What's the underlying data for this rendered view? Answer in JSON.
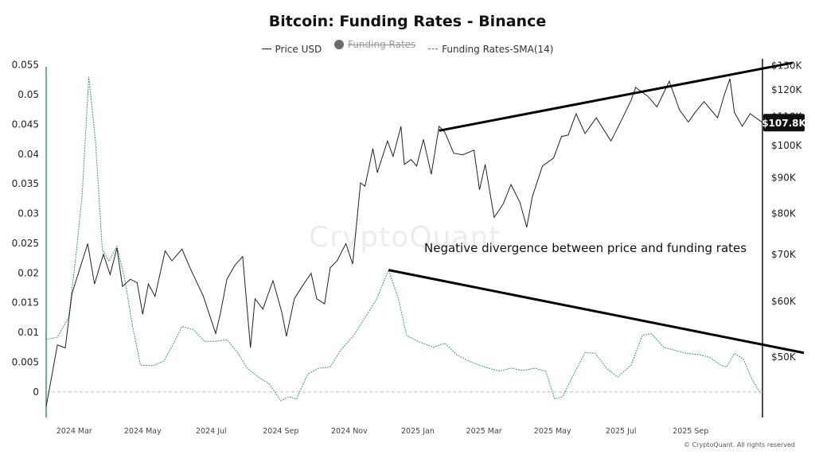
{
  "chart_data": {
    "type": "line",
    "title": "Bitcoin: Funding Rates - Binance",
    "legend": [
      {
        "name": "Price USD",
        "style": "solid",
        "color": "#222222",
        "hidden": false
      },
      {
        "name": "Funding Rates",
        "style": "dot",
        "color": "#6b6b6b",
        "hidden": true
      },
      {
        "name": "Funding Rates-SMA(14)",
        "style": "dashed",
        "color": "#3a9a6a",
        "hidden": false
      }
    ],
    "legend_position": "top-center",
    "x_ticks": [
      "2024 Mar",
      "2024 May",
      "2024 Jul",
      "2024 Sep",
      "2024 Nov",
      "2025 Jan",
      "2025 Mar",
      "2025 May",
      "2025 Jul",
      "2025 Sep"
    ],
    "x_range": [
      "2024-02-05",
      "2025-11-04"
    ],
    "left_axis": {
      "label": "",
      "ticks": [
        "0.055",
        "0.05",
        "0.045",
        "0.04",
        "0.035",
        "0.03",
        "0.025",
        "0.02",
        "0.015",
        "0.01",
        "0.005",
        "0"
      ],
      "range": [
        -0.0043,
        0.0555
      ]
    },
    "right_axis": {
      "label": "",
      "scale": "log",
      "ticks": [
        "$130K",
        "$120K",
        "$110K",
        "$100K",
        "$90K",
        "$80K",
        "$70K",
        "$60K",
        "$50K"
      ],
      "tick_values": [
        130000,
        120000,
        110000,
        100000,
        90000,
        80000,
        70000,
        60000,
        50000
      ],
      "range": [
        41000,
        131500
      ]
    },
    "current_price_label": "$107.8K",
    "series": [
      {
        "name": "Price USD",
        "axis": "right",
        "points": [
          [
            "2024-02-05",
            42500
          ],
          [
            "2024-02-10",
            47000
          ],
          [
            "2024-02-15",
            52000
          ],
          [
            "2024-02-22",
            51500
          ],
          [
            "2024-02-28",
            61500
          ],
          [
            "2024-03-05",
            66000
          ],
          [
            "2024-03-13",
            72500
          ],
          [
            "2024-03-19",
            63500
          ],
          [
            "2024-03-27",
            70000
          ],
          [
            "2024-04-02",
            65500
          ],
          [
            "2024-04-08",
            71500
          ],
          [
            "2024-04-13",
            63000
          ],
          [
            "2024-04-20",
            64500
          ],
          [
            "2024-04-26",
            63800
          ],
          [
            "2024-05-01",
            57500
          ],
          [
            "2024-05-06",
            63500
          ],
          [
            "2024-05-12",
            61000
          ],
          [
            "2024-05-21",
            70800
          ],
          [
            "2024-05-27",
            68500
          ],
          [
            "2024-06-05",
            71200
          ],
          [
            "2024-06-12",
            67000
          ],
          [
            "2024-06-24",
            61000
          ],
          [
            "2024-07-05",
            54000
          ],
          [
            "2024-07-09",
            57500
          ],
          [
            "2024-07-15",
            64500
          ],
          [
            "2024-07-22",
            67500
          ],
          [
            "2024-07-29",
            69500
          ],
          [
            "2024-08-05",
            51500
          ],
          [
            "2024-08-09",
            60500
          ],
          [
            "2024-08-16",
            58500
          ],
          [
            "2024-08-25",
            64200
          ],
          [
            "2024-09-02",
            57800
          ],
          [
            "2024-09-06",
            53500
          ],
          [
            "2024-09-13",
            60500
          ],
          [
            "2024-09-20",
            63000
          ],
          [
            "2024-09-28",
            65800
          ],
          [
            "2024-10-03",
            60500
          ],
          [
            "2024-10-10",
            59500
          ],
          [
            "2024-10-15",
            67000
          ],
          [
            "2024-10-21",
            68500
          ],
          [
            "2024-10-29",
            72500
          ],
          [
            "2024-11-04",
            67800
          ],
          [
            "2024-11-11",
            88500
          ],
          [
            "2024-11-15",
            87500
          ],
          [
            "2024-11-22",
            99000
          ],
          [
            "2024-11-26",
            91500
          ],
          [
            "2024-12-05",
            101500
          ],
          [
            "2024-12-10",
            96500
          ],
          [
            "2024-12-17",
            106500
          ],
          [
            "2024-12-20",
            94000
          ],
          [
            "2024-12-26",
            95500
          ],
          [
            "2024-12-31",
            93500
          ],
          [
            "2025-01-06",
            102000
          ],
          [
            "2025-01-13",
            91000
          ],
          [
            "2025-01-20",
            106500
          ],
          [
            "2025-01-25",
            104500
          ],
          [
            "2025-02-02",
            97500
          ],
          [
            "2025-02-10",
            97000
          ],
          [
            "2025-02-20",
            98500
          ],
          [
            "2025-02-25",
            86500
          ],
          [
            "2025-03-02",
            94000
          ],
          [
            "2025-03-10",
            79000
          ],
          [
            "2025-03-18",
            82500
          ],
          [
            "2025-03-25",
            88000
          ],
          [
            "2025-04-02",
            83000
          ],
          [
            "2025-04-08",
            76500
          ],
          [
            "2025-04-13",
            84500
          ],
          [
            "2025-04-22",
            93500
          ],
          [
            "2025-05-02",
            96000
          ],
          [
            "2025-05-09",
            103000
          ],
          [
            "2025-05-15",
            103500
          ],
          [
            "2025-05-22",
            111000
          ],
          [
            "2025-05-30",
            104000
          ],
          [
            "2025-06-09",
            109500
          ],
          [
            "2025-06-17",
            104500
          ],
          [
            "2025-06-22",
            101500
          ],
          [
            "2025-06-30",
            107500
          ],
          [
            "2025-07-10",
            116000
          ],
          [
            "2025-07-14",
            121000
          ],
          [
            "2025-07-25",
            117500
          ],
          [
            "2025-08-02",
            113500
          ],
          [
            "2025-08-13",
            123500
          ],
          [
            "2025-08-22",
            112500
          ],
          [
            "2025-08-30",
            108000
          ],
          [
            "2025-09-05",
            111500
          ],
          [
            "2025-09-13",
            115500
          ],
          [
            "2025-09-25",
            109500
          ],
          [
            "2025-10-01",
            118000
          ],
          [
            "2025-10-06",
            124500
          ],
          [
            "2025-10-10",
            111500
          ],
          [
            "2025-10-17",
            106500
          ],
          [
            "2025-10-24",
            111000
          ],
          [
            "2025-11-04",
            107800
          ]
        ]
      },
      {
        "name": "Funding Rates-SMA(14)",
        "axis": "left",
        "points": [
          [
            "2024-02-05",
            0.0088
          ],
          [
            "2024-02-15",
            0.0092
          ],
          [
            "2024-02-25",
            0.0125
          ],
          [
            "2024-03-02",
            0.022
          ],
          [
            "2024-03-08",
            0.033
          ],
          [
            "2024-03-14",
            0.053
          ],
          [
            "2024-03-20",
            0.042
          ],
          [
            "2024-03-26",
            0.024
          ],
          [
            "2024-04-01",
            0.022
          ],
          [
            "2024-04-08",
            0.0245
          ],
          [
            "2024-04-15",
            0.019
          ],
          [
            "2024-04-22",
            0.011
          ],
          [
            "2024-04-29",
            0.0045
          ],
          [
            "2024-05-10",
            0.0044
          ],
          [
            "2024-05-20",
            0.0052
          ],
          [
            "2024-05-28",
            0.008
          ],
          [
            "2024-06-05",
            0.011
          ],
          [
            "2024-06-15",
            0.0105
          ],
          [
            "2024-06-25",
            0.0085
          ],
          [
            "2024-07-05",
            0.0085
          ],
          [
            "2024-07-15",
            0.0088
          ],
          [
            "2024-07-25",
            0.0065
          ],
          [
            "2024-08-02",
            0.004
          ],
          [
            "2024-08-12",
            0.0025
          ],
          [
            "2024-08-22",
            0.0013
          ],
          [
            "2024-09-01",
            -0.0015
          ],
          [
            "2024-09-08",
            -0.0008
          ],
          [
            "2024-09-15",
            -0.0012
          ],
          [
            "2024-09-25",
            0.003
          ],
          [
            "2024-10-05",
            0.004
          ],
          [
            "2024-10-15",
            0.0042
          ],
          [
            "2024-10-25",
            0.0072
          ],
          [
            "2024-11-05",
            0.0095
          ],
          [
            "2024-11-15",
            0.0125
          ],
          [
            "2024-11-25",
            0.0155
          ],
          [
            "2024-12-06",
            0.0205
          ],
          [
            "2024-12-15",
            0.0155
          ],
          [
            "2024-12-22",
            0.0095
          ],
          [
            "2025-01-01",
            0.0085
          ],
          [
            "2025-01-15",
            0.0075
          ],
          [
            "2025-01-25",
            0.0082
          ],
          [
            "2025-02-05",
            0.0062
          ],
          [
            "2025-02-15",
            0.0052
          ],
          [
            "2025-02-25",
            0.0045
          ],
          [
            "2025-03-05",
            0.004
          ],
          [
            "2025-03-15",
            0.0035
          ],
          [
            "2025-03-25",
            0.004
          ],
          [
            "2025-04-05",
            0.0036
          ],
          [
            "2025-04-15",
            0.004
          ],
          [
            "2025-04-25",
            0.0035
          ],
          [
            "2025-05-03",
            -0.0012
          ],
          [
            "2025-05-10",
            -0.0008
          ],
          [
            "2025-05-20",
            0.003
          ],
          [
            "2025-05-30",
            0.0066
          ],
          [
            "2025-06-08",
            0.0065
          ],
          [
            "2025-06-18",
            0.004
          ],
          [
            "2025-06-28",
            0.0025
          ],
          [
            "2025-07-10",
            0.0045
          ],
          [
            "2025-07-20",
            0.0095
          ],
          [
            "2025-07-28",
            0.0098
          ],
          [
            "2025-08-08",
            0.0075
          ],
          [
            "2025-08-18",
            0.007
          ],
          [
            "2025-08-28",
            0.0065
          ],
          [
            "2025-09-08",
            0.0063
          ],
          [
            "2025-09-18",
            0.0058
          ],
          [
            "2025-09-28",
            0.0045
          ],
          [
            "2025-10-03",
            0.0042
          ],
          [
            "2025-10-10",
            0.0065
          ],
          [
            "2025-10-18",
            0.0055
          ],
          [
            "2025-10-26",
            0.002
          ],
          [
            "2025-11-02",
            -0.0002
          ]
        ]
      }
    ],
    "annotations": {
      "text": "Negative divergence between price and funding rates",
      "price_trendline": [
        [
          "2025-01-20",
          105000
        ],
        [
          "2025-11-04",
          130500
        ]
      ],
      "funding_trendline": [
        [
          "2024-12-06",
          0.0205
        ],
        [
          "2025-11-04",
          0.0063
        ]
      ]
    },
    "zero_line": true,
    "grid": false
  },
  "watermark": "CryptoQuant",
  "copyright": "© CryptoQuant. All rights reserved"
}
